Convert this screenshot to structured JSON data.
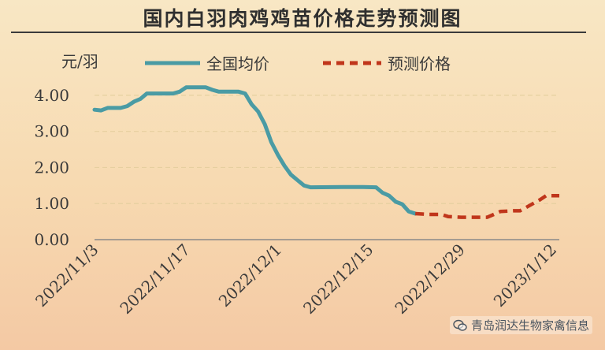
{
  "title": "国内白羽肉鸡鸡苗价格走势预测图",
  "watermark": "青岛润达生物家禽信息",
  "colors": {
    "actual": "#4a9ba4",
    "forecast": "#c0361b",
    "grid": "#e6cfa0",
    "axis": "#8a8a8a",
    "text": "#3a3a3a"
  },
  "chart_data": {
    "type": "line",
    "unit": "元/羽",
    "ylim": [
      0,
      4.5
    ],
    "yticks": [
      "0.00",
      "1.00",
      "2.00",
      "3.00",
      "4.00"
    ],
    "ytick_values": [
      0,
      1,
      2,
      3,
      4
    ],
    "xlim": [
      "2022-11-03",
      "2023-01-13"
    ],
    "xticks": [
      "2022/11/3",
      "2022/11/17",
      "2022/12/1",
      "2022/12/15",
      "2022/12/29",
      "2023/1/12"
    ],
    "xtick_dates": [
      "2022-11-03",
      "2022-11-17",
      "2022-12-01",
      "2022-12-15",
      "2022-12-29",
      "2023-01-12"
    ],
    "grid": "horizontal-dashed",
    "legend_position": "top",
    "series": [
      {
        "name": "全国均价",
        "style": "solid",
        "points": [
          [
            "2022-11-03",
            3.6
          ],
          [
            "2022-11-04",
            3.58
          ],
          [
            "2022-11-05",
            3.65
          ],
          [
            "2022-11-07",
            3.65
          ],
          [
            "2022-11-08",
            3.7
          ],
          [
            "2022-11-09",
            3.82
          ],
          [
            "2022-11-10",
            3.9
          ],
          [
            "2022-11-11",
            4.05
          ],
          [
            "2022-11-12",
            4.05
          ],
          [
            "2022-11-15",
            4.05
          ],
          [
            "2022-11-16",
            4.1
          ],
          [
            "2022-11-17",
            4.22
          ],
          [
            "2022-11-20",
            4.22
          ],
          [
            "2022-11-21",
            4.15
          ],
          [
            "2022-11-22",
            4.1
          ],
          [
            "2022-11-25",
            4.1
          ],
          [
            "2022-11-26",
            4.05
          ],
          [
            "2022-11-27",
            3.75
          ],
          [
            "2022-11-28",
            3.55
          ],
          [
            "2022-11-29",
            3.2
          ],
          [
            "2022-11-30",
            2.7
          ],
          [
            "2022-12-01",
            2.35
          ],
          [
            "2022-12-02",
            2.05
          ],
          [
            "2022-12-03",
            1.8
          ],
          [
            "2022-12-04",
            1.65
          ],
          [
            "2022-12-05",
            1.5
          ],
          [
            "2022-12-06",
            1.45
          ],
          [
            "2022-12-11",
            1.46
          ],
          [
            "2022-12-14",
            1.46
          ],
          [
            "2022-12-16",
            1.45
          ],
          [
            "2022-12-17",
            1.3
          ],
          [
            "2022-12-18",
            1.22
          ],
          [
            "2022-12-19",
            1.05
          ],
          [
            "2022-12-20",
            0.98
          ],
          [
            "2022-12-21",
            0.78
          ],
          [
            "2022-12-22",
            0.72
          ]
        ]
      },
      {
        "name": "预测价格",
        "style": "dashed",
        "points": [
          [
            "2022-12-22",
            0.72
          ],
          [
            "2022-12-24",
            0.7
          ],
          [
            "2022-12-26",
            0.7
          ],
          [
            "2022-12-27",
            0.64
          ],
          [
            "2022-12-29",
            0.62
          ],
          [
            "2023-01-02",
            0.62
          ],
          [
            "2023-01-03",
            0.7
          ],
          [
            "2023-01-04",
            0.78
          ],
          [
            "2023-01-06",
            0.8
          ],
          [
            "2023-01-07",
            0.8
          ],
          [
            "2023-01-08",
            0.9
          ],
          [
            "2023-01-10",
            1.1
          ],
          [
            "2023-01-11",
            1.22
          ],
          [
            "2023-01-13",
            1.22
          ]
        ]
      }
    ]
  }
}
